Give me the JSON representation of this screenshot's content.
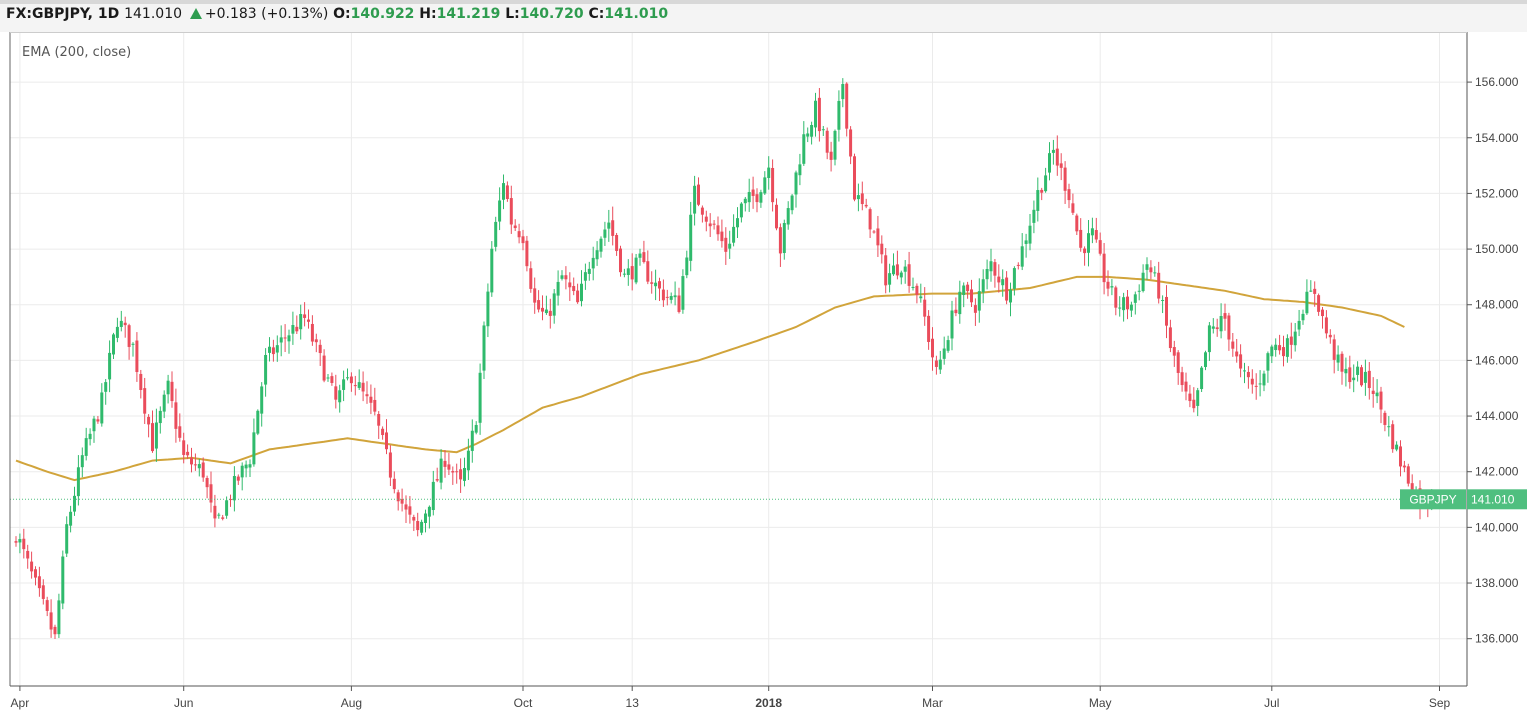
{
  "header": {
    "symbol": "FX:GBPJPY, 1D",
    "last": "141.010",
    "change": "+0.183 (+0.13%)",
    "o_label": "O:",
    "o_value": "140.922",
    "h_label": "H:",
    "h_value": "141.219",
    "l_label": "L:",
    "l_value": "140.720",
    "c_label": "C:",
    "c_value": "141.010"
  },
  "indicator_label": "EMA (200, close)",
  "price_tag": {
    "symbol": "GBPJPY",
    "value": "141.010"
  },
  "colors": {
    "up": "#2fba6c",
    "down": "#ea4c5b",
    "ema": "#d1a43b",
    "grid": "#ebebeb",
    "last_line": "#4fbf7f"
  },
  "chart_data": {
    "type": "candlestick",
    "title": "FX:GBPJPY, 1D",
    "ylim": [
      134.3,
      157.8
    ],
    "y_ticks": [
      "136.000",
      "138.000",
      "140.000",
      "142.000",
      "144.000",
      "146.000",
      "148.000",
      "150.000",
      "152.000",
      "154.000",
      "156.000"
    ],
    "x_ticks": [
      {
        "label": "Apr",
        "index": 1
      },
      {
        "label": "Jun",
        "index": 43
      },
      {
        "label": "Aug",
        "index": 86
      },
      {
        "label": "Oct",
        "index": 130
      },
      {
        "label": "13",
        "index": 158
      },
      {
        "label": "2018",
        "index": 193
      },
      {
        "label": "Mar",
        "index": 235
      },
      {
        "label": "May",
        "index": 278
      },
      {
        "label": "Jul",
        "index": 322
      },
      {
        "label": "Sep",
        "index": 365
      }
    ],
    "last_price": 141.01,
    "anchors": [
      [
        0,
        139.8
      ],
      [
        10,
        136.0
      ],
      [
        13,
        140.0
      ],
      [
        17,
        142.5
      ],
      [
        22,
        144.5
      ],
      [
        26,
        147.5
      ],
      [
        30,
        146.5
      ],
      [
        35,
        143.0
      ],
      [
        39,
        145.0
      ],
      [
        43,
        142.5
      ],
      [
        48,
        142.0
      ],
      [
        51,
        140.0
      ],
      [
        56,
        141.5
      ],
      [
        60,
        142.5
      ],
      [
        64,
        146.0
      ],
      [
        70,
        147.0
      ],
      [
        74,
        147.5
      ],
      [
        78,
        146.0
      ],
      [
        82,
        144.5
      ],
      [
        86,
        145.5
      ],
      [
        92,
        144.0
      ],
      [
        96,
        142.0
      ],
      [
        100,
        140.5
      ],
      [
        103,
        139.8
      ],
      [
        106,
        141.0
      ],
      [
        110,
        142.5
      ],
      [
        114,
        141.5
      ],
      [
        116,
        142.5
      ],
      [
        118,
        144.0
      ],
      [
        120,
        147.0
      ],
      [
        122,
        150.0
      ],
      [
        125,
        152.5
      ],
      [
        127,
        151.0
      ],
      [
        130,
        150.5
      ],
      [
        133,
        148.0
      ],
      [
        136,
        147.5
      ],
      [
        140,
        149.0
      ],
      [
        144,
        148.0
      ],
      [
        148,
        150.0
      ],
      [
        152,
        151.0
      ],
      [
        156,
        149.0
      ],
      [
        160,
        149.5
      ],
      [
        165,
        148.5
      ],
      [
        170,
        148.0
      ],
      [
        174,
        152.0
      ],
      [
        178,
        151.0
      ],
      [
        182,
        150.0
      ],
      [
        186,
        151.5
      ],
      [
        190,
        152.0
      ],
      [
        193,
        153.0
      ],
      [
        196,
        150.0
      ],
      [
        199,
        152.0
      ],
      [
        202,
        154.0
      ],
      [
        205,
        155.0
      ],
      [
        209,
        153.0
      ],
      [
        212,
        156.0
      ],
      [
        215,
        152.0
      ],
      [
        219,
        151.0
      ],
      [
        223,
        149.0
      ],
      [
        227,
        149.5
      ],
      [
        231,
        148.5
      ],
      [
        233,
        147.5
      ],
      [
        236,
        145.5
      ],
      [
        239,
        147.0
      ],
      [
        242,
        148.5
      ],
      [
        246,
        148.0
      ],
      [
        250,
        149.5
      ],
      [
        254,
        148.5
      ],
      [
        258,
        150.0
      ],
      [
        262,
        152.0
      ],
      [
        266,
        153.5
      ],
      [
        270,
        152.0
      ],
      [
        273,
        150.0
      ],
      [
        276,
        150.5
      ],
      [
        279,
        149.0
      ],
      [
        282,
        148.0
      ],
      [
        286,
        148.0
      ],
      [
        290,
        149.5
      ],
      [
        293,
        148.5
      ],
      [
        296,
        146.5
      ],
      [
        299,
        145.0
      ],
      [
        302,
        144.0
      ],
      [
        306,
        147.0
      ],
      [
        310,
        147.5
      ],
      [
        314,
        145.5
      ],
      [
        318,
        145.0
      ],
      [
        322,
        146.5
      ],
      [
        326,
        146.5
      ],
      [
        330,
        148.0
      ],
      [
        333,
        148.5
      ],
      [
        336,
        147.0
      ],
      [
        340,
        145.5
      ],
      [
        344,
        145.5
      ],
      [
        348,
        145.0
      ],
      [
        352,
        143.5
      ],
      [
        356,
        142.0
      ],
      [
        360,
        141.0
      ],
      [
        363,
        141.0
      ]
    ],
    "ema200": [
      [
        0,
        142.4
      ],
      [
        8,
        142.0
      ],
      [
        15,
        141.7
      ],
      [
        25,
        142.0
      ],
      [
        35,
        142.4
      ],
      [
        45,
        142.5
      ],
      [
        55,
        142.3
      ],
      [
        65,
        142.8
      ],
      [
        75,
        143.0
      ],
      [
        85,
        143.2
      ],
      [
        95,
        143.0
      ],
      [
        105,
        142.8
      ],
      [
        113,
        142.7
      ],
      [
        118,
        143.0
      ],
      [
        125,
        143.5
      ],
      [
        135,
        144.3
      ],
      [
        145,
        144.7
      ],
      [
        160,
        145.5
      ],
      [
        175,
        146.0
      ],
      [
        190,
        146.7
      ],
      [
        200,
        147.2
      ],
      [
        210,
        147.9
      ],
      [
        220,
        148.3
      ],
      [
        235,
        148.4
      ],
      [
        245,
        148.4
      ],
      [
        260,
        148.6
      ],
      [
        272,
        149.0
      ],
      [
        280,
        149.0
      ],
      [
        290,
        148.9
      ],
      [
        300,
        148.7
      ],
      [
        310,
        148.5
      ],
      [
        320,
        148.2
      ],
      [
        330,
        148.1
      ],
      [
        340,
        147.9
      ],
      [
        350,
        147.6
      ],
      [
        356,
        147.2
      ]
    ]
  }
}
